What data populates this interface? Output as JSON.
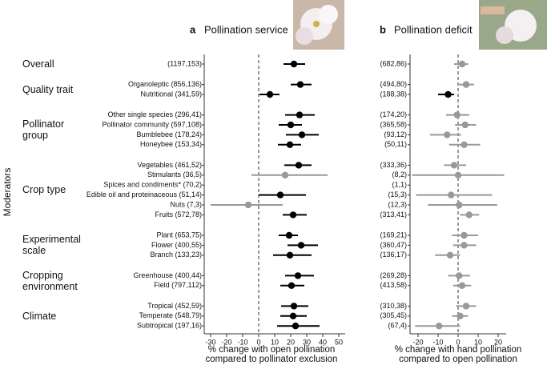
{
  "chart_data": {
    "type": "forest",
    "ylabel": "Moderators",
    "groups": [
      {
        "name": "Overall",
        "categories": [
          "(1197,153)"
        ]
      },
      {
        "name": "Quality trait",
        "categories": [
          "Organoleptic (856,136)",
          "Nutritional (341,59)"
        ]
      },
      {
        "name": "Pollinator group",
        "categories": [
          "Other single species (296,41)",
          "Pollinator community (597,108)",
          "Bumblebee (178,24)",
          "Honeybee (153,34)"
        ]
      },
      {
        "name": "Crop type",
        "categories": [
          "Vegetables (461,52)",
          "Stimulants (36,5)",
          "Spices and condiments* (70,2)",
          "Edible oil and proteinaceous (51,14)",
          "Nuts (7,3)",
          "Fruits (572,78)"
        ]
      },
      {
        "name": "Experimental scale",
        "categories": [
          "Plant (653,75)",
          "Flower (400,55)",
          "Branch (133,23)"
        ]
      },
      {
        "name": "Cropping environment",
        "categories": [
          "Greenhouse (400,44)",
          "Field (797,112)"
        ]
      },
      {
        "name": "Climate",
        "categories": [
          "Tropical (452,59)",
          "Temperate (548,79)",
          "Subtropical (197,16)"
        ]
      }
    ],
    "panels": [
      {
        "letter": "a",
        "title": "Pollination service",
        "xlabel": [
          "% change with open pollination",
          "compared to pollinator exclusion"
        ],
        "xlim": [
          -34,
          54
        ],
        "xticks": [
          -30,
          -20,
          -10,
          0,
          10,
          20,
          30,
          40,
          50
        ],
        "values": [
          22,
          26,
          7,
          25.5,
          20,
          27,
          19.5,
          25,
          16.5,
          null,
          13.5,
          -6.5,
          21.5,
          19,
          26.5,
          19.5,
          24.5,
          20.5,
          22,
          21.5,
          23
        ],
        "lower": [
          15.5,
          20,
          0.5,
          16.5,
          12.5,
          17,
          12,
          16,
          -4.5,
          null,
          0,
          -30,
          15,
          12.5,
          18,
          9,
          16.5,
          13.5,
          14,
          13.5,
          11.5
        ],
        "upper": [
          29,
          33,
          13,
          35,
          27,
          37.5,
          26.5,
          33,
          43,
          null,
          29.5,
          15,
          30,
          24.5,
          37,
          33,
          34.5,
          28.5,
          31,
          30,
          38
        ],
        "colors": [
          "#000000",
          "#000000",
          "#000000",
          "#000000",
          "#000000",
          "#000000",
          "#000000",
          "#000000",
          "#999999",
          null,
          "#000000",
          "#999999",
          "#000000",
          "#000000",
          "#000000",
          "#000000",
          "#000000",
          "#000000",
          "#000000",
          "#000000",
          "#000000"
        ]
      },
      {
        "letter": "b",
        "title": "Pollination deficit",
        "xlabel": [
          "% change with hand pollination",
          "compared to open pollination"
        ],
        "xlim": [
          -24,
          24
        ],
        "xticks": [
          -20,
          -10,
          0,
          10,
          20
        ],
        "labels": [
          "(682,86)",
          "(494,80)",
          "(188,38)",
          "(174,20)",
          "(365,58)",
          "(93,12)",
          "(50,11)",
          "(333,36)",
          "(8,2)",
          "(1,1)",
          "(15,3)",
          "(12,3)",
          "(313,41)",
          "(169,21)",
          "(360,47)",
          "(136,17)",
          "(269,28)",
          "(413,58)",
          "(310,38)",
          "(305,45)",
          "(67,4)"
        ],
        "values": [
          2,
          4,
          -5,
          -0.5,
          3.5,
          -5.5,
          3,
          -2,
          0,
          null,
          -3.5,
          0.5,
          5.5,
          3,
          3,
          -4,
          0.5,
          2,
          4,
          1,
          -9.5
        ],
        "lower": [
          -2,
          0.5,
          -10,
          -6,
          -1.5,
          -14,
          -4.5,
          -7,
          -23,
          null,
          -21,
          -15,
          1,
          -3,
          -2.5,
          -11.5,
          -5,
          -2.5,
          -1,
          -3,
          -21.5
        ],
        "upper": [
          5,
          8,
          -2,
          5.5,
          9,
          1.5,
          11,
          4,
          23,
          null,
          17,
          19.5,
          10.5,
          10,
          9,
          1,
          6,
          6.5,
          9,
          5,
          1
        ],
        "colors": [
          "#999999",
          "#999999",
          "#000000",
          "#999999",
          "#999999",
          "#999999",
          "#999999",
          "#999999",
          "#999999",
          null,
          "#999999",
          "#999999",
          "#999999",
          "#999999",
          "#999999",
          "#999999",
          "#999999",
          "#999999",
          "#999999",
          "#999999",
          "#999999"
        ]
      }
    ]
  }
}
